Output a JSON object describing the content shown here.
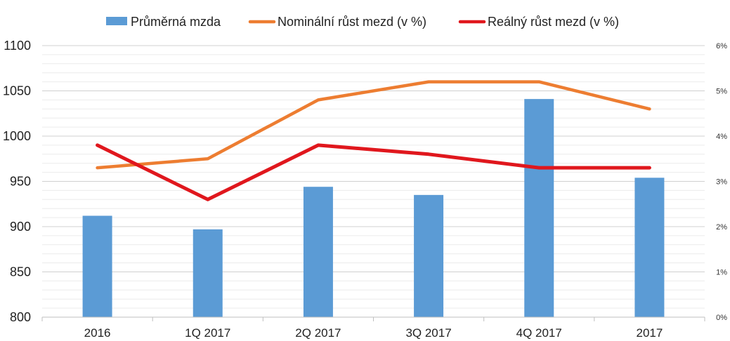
{
  "chart_data": {
    "type": "bar+line",
    "categories": [
      "2016",
      "1Q 2017",
      "2Q 2017",
      "3Q 2017",
      "4Q 2017",
      "2017"
    ],
    "series": [
      {
        "name": "Průměrná mzda",
        "kind": "bar",
        "axis": "left",
        "color": "#5b9bd5",
        "values": [
          912,
          897,
          944,
          935,
          1041,
          954
        ]
      },
      {
        "name": "Nominální růst mezd (v %)",
        "kind": "line",
        "axis": "right",
        "color": "#ed7d31",
        "values": [
          3.3,
          3.5,
          4.8,
          5.2,
          5.2,
          4.6
        ]
      },
      {
        "name": "Reálný růst mezd (v %)",
        "kind": "line",
        "axis": "right",
        "color": "#e0171d",
        "values": [
          3.8,
          2.6,
          3.8,
          3.6,
          3.3,
          3.3
        ]
      }
    ],
    "y_left": {
      "range": [
        800,
        1100
      ],
      "ticks": [
        "800",
        "850",
        "900",
        "950",
        "1000",
        "1050",
        "1100"
      ]
    },
    "y_right": {
      "range": [
        0,
        6
      ],
      "ticks": [
        "0%",
        "1%",
        "2%",
        "3%",
        "4%",
        "5%",
        "6%"
      ]
    },
    "grid": true,
    "legend_position": "top",
    "title": "",
    "xlabel": "",
    "ylabel": ""
  }
}
